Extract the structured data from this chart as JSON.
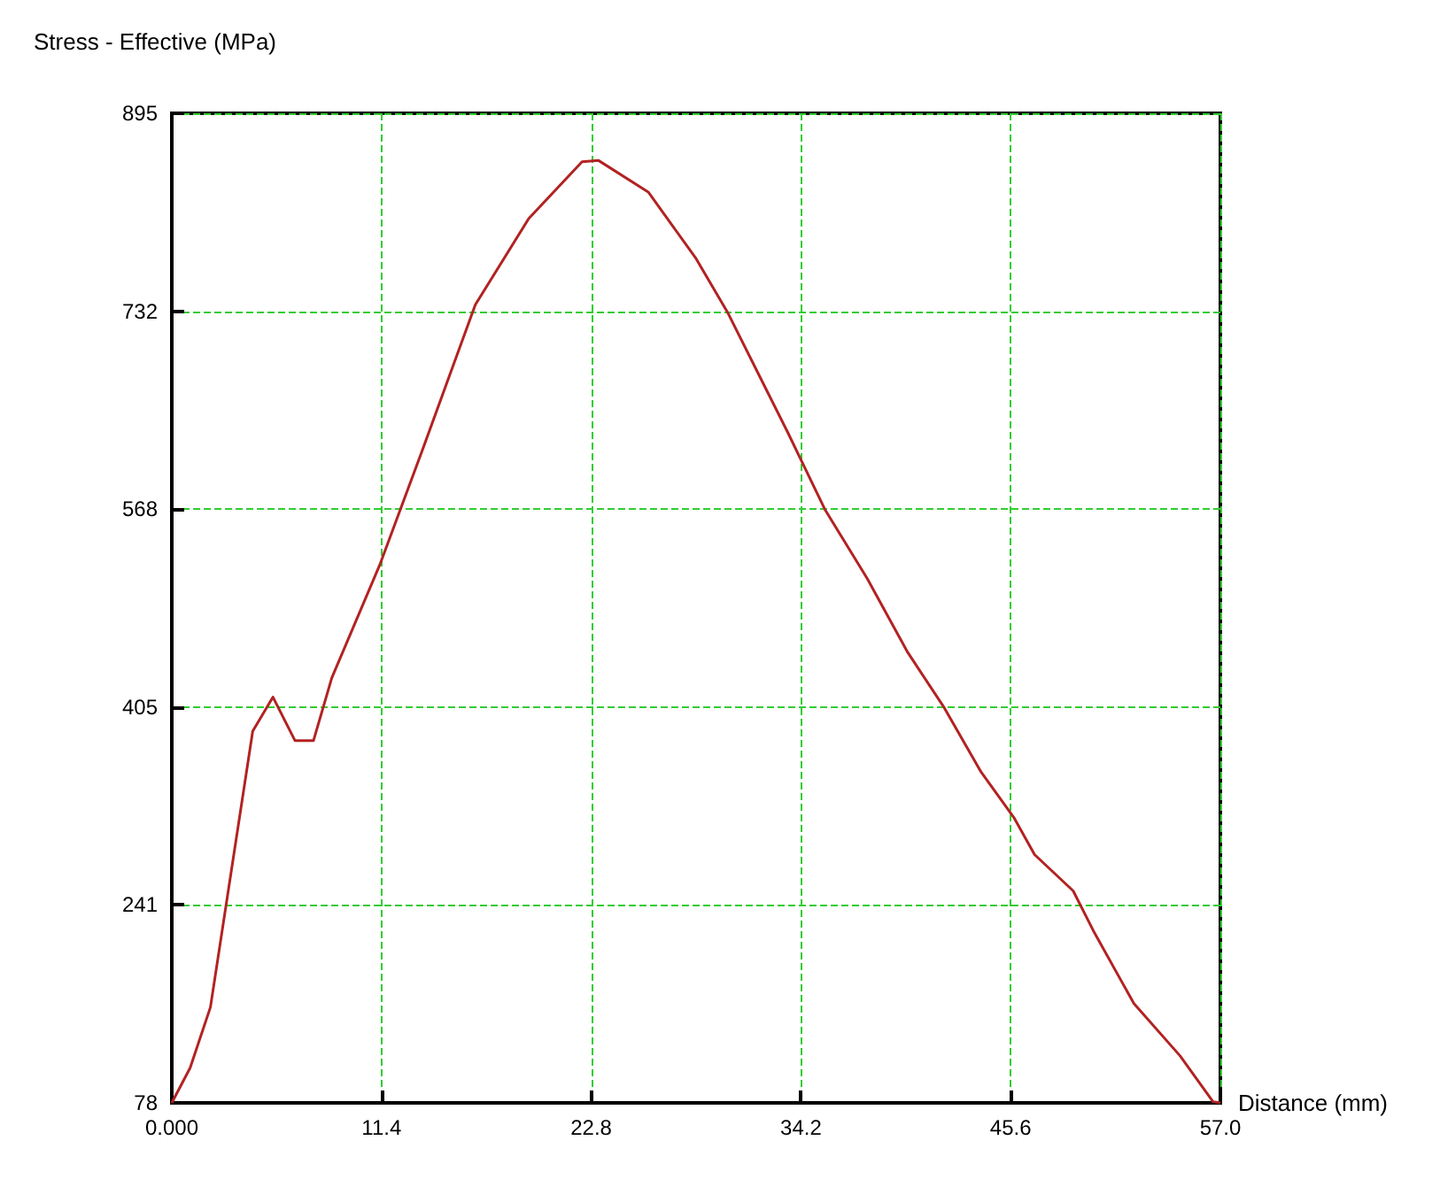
{
  "chart_data": {
    "type": "line",
    "ylabel": "Stress - Effective (MPa)",
    "xlabel": "Distance (mm)",
    "x": [
      0,
      1.0,
      2.1,
      4.4,
      5.5,
      6.7,
      7.7,
      8.7,
      11.3,
      13.6,
      16.5,
      19.4,
      22.3,
      23.2,
      25.9,
      28.5,
      30.2,
      33.5,
      35.5,
      37.8,
      40.0,
      42.0,
      44.0,
      45.8,
      46.9,
      49.0,
      50.1,
      52.3,
      54.8,
      56.6,
      57.0
    ],
    "series": [
      {
        "color": "#b22222",
        "values": [
          78,
          107,
          157,
          385,
          413,
          377,
          377,
          429,
          522,
          616,
          737,
          808,
          855,
          856,
          830,
          775,
          731,
          631,
          568,
          511,
          450,
          404,
          351,
          313,
          283,
          253,
          220,
          160,
          117,
          79,
          78
        ]
      }
    ],
    "xlim": [
      0,
      57
    ],
    "xticks": [
      {
        "value": 0,
        "label": "0.000"
      },
      11.4,
      22.8,
      34.2,
      45.6,
      {
        "value": 57,
        "label": "57.0"
      }
    ],
    "ylim": [
      78,
      895
    ],
    "yticks": [
      78,
      {
        "value": 241.4,
        "label": "241"
      },
      {
        "value": 404.8,
        "label": "405"
      },
      {
        "value": 568.2,
        "label": "568"
      },
      {
        "value": 731.6,
        "label": "732"
      },
      895
    ],
    "grid": true,
    "marker": "none",
    "line_style": "solid"
  }
}
